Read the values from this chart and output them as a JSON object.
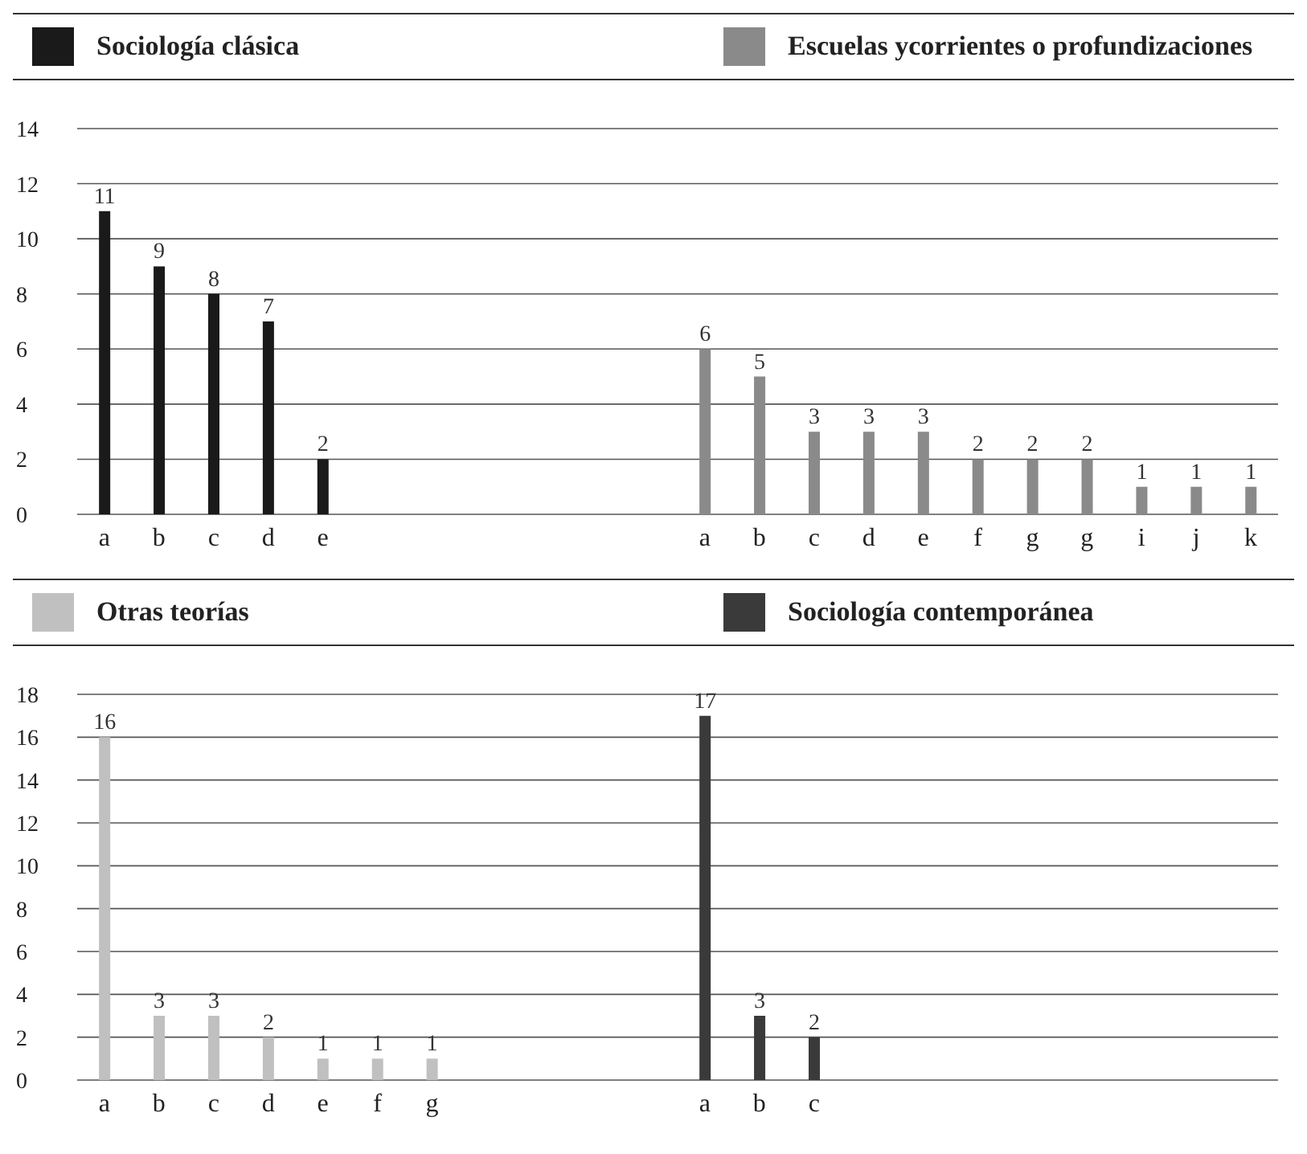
{
  "chart_data": [
    {
      "type": "bar",
      "stacked": true,
      "legend": "top",
      "grid": "y",
      "data_labels": true,
      "ylim": [
        0,
        14
      ],
      "yticks": [
        0,
        2,
        4,
        6,
        8,
        10,
        12,
        14
      ],
      "categories": [
        "a",
        "b",
        "c",
        "d",
        "e",
        null,
        null,
        null,
        null,
        null,
        null,
        "a",
        "b",
        "c",
        "d",
        "e",
        "f",
        "g",
        "g",
        "i",
        "j",
        "k"
      ],
      "series": [
        {
          "name": "Sociología clásica",
          "color": "#1a1a1a",
          "values": [
            11,
            9,
            8,
            7,
            2,
            null,
            null,
            null,
            null,
            null,
            null,
            null,
            null,
            null,
            null,
            null,
            null,
            null,
            null,
            null,
            null,
            null
          ]
        },
        {
          "name": "Escuelas ycorrientes o profundizaciones",
          "color": "#8a8a8a",
          "values": [
            null,
            null,
            null,
            null,
            null,
            null,
            null,
            null,
            null,
            null,
            null,
            6,
            5,
            3,
            3,
            3,
            2,
            2,
            2,
            1,
            1,
            1
          ]
        }
      ]
    },
    {
      "type": "bar",
      "stacked": true,
      "legend": "top",
      "grid": "y",
      "data_labels": true,
      "ylim": [
        0,
        18
      ],
      "yticks": [
        0,
        2,
        4,
        6,
        8,
        10,
        12,
        14,
        16,
        18
      ],
      "categories": [
        "a",
        "b",
        "c",
        "d",
        "e",
        "f",
        "g",
        null,
        null,
        null,
        null,
        "a",
        "b",
        "c",
        null,
        null,
        null,
        null,
        null,
        null,
        null,
        null
      ],
      "series": [
        {
          "name": "Otras teorías",
          "color": "#c0c0c0",
          "values": [
            16,
            3,
            3,
            2,
            1,
            1,
            1,
            null,
            null,
            null,
            null,
            null,
            null,
            null,
            null,
            null,
            null,
            null,
            null,
            null,
            null,
            null
          ]
        },
        {
          "name": "Sociología contemporánea",
          "color": "#3a3a3a",
          "values": [
            null,
            null,
            null,
            null,
            null,
            null,
            null,
            null,
            null,
            null,
            null,
            17,
            3,
            2,
            null,
            null,
            null,
            null,
            null,
            null,
            null,
            null
          ]
        }
      ]
    }
  ]
}
